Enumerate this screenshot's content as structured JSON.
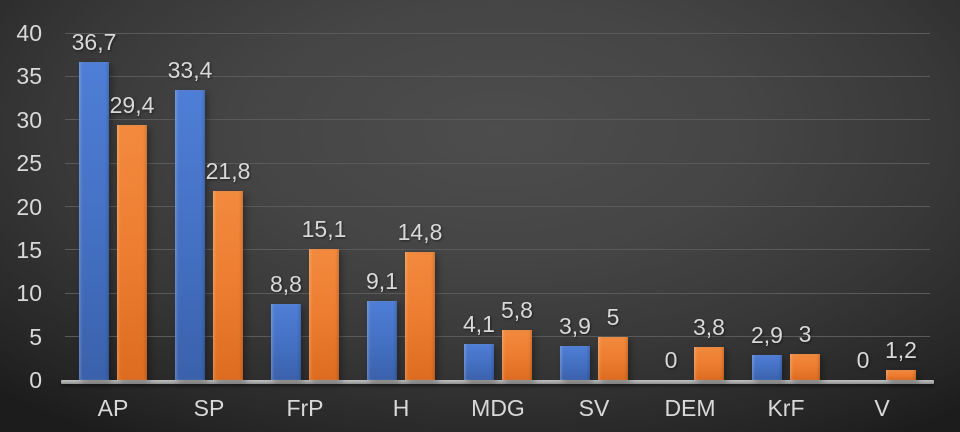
{
  "chart_data": {
    "type": "bar",
    "title": "",
    "xlabel": "",
    "ylabel": "",
    "categories": [
      "AP",
      "SP",
      "FrP",
      "H",
      "MDG",
      "SV",
      "DEM",
      "KrF",
      "V"
    ],
    "series": [
      {
        "name": "series-blue",
        "color": "#4472C4",
        "values": [
          36.7,
          33.4,
          8.8,
          9.1,
          4.1,
          3.9,
          0,
          2.9,
          0
        ],
        "labels": [
          "36,7",
          "33,4",
          "8,8",
          "9,1",
          "4,1",
          "3,9",
          "0",
          "2,9",
          "0"
        ]
      },
      {
        "name": "series-orange",
        "color": "#ED7D31",
        "values": [
          29.4,
          21.8,
          15.1,
          14.8,
          5.8,
          5,
          3.8,
          3,
          1.2
        ],
        "labels": [
          "29,4",
          "21,8",
          "15,1",
          "14,8",
          "5,8",
          "5",
          "3,8",
          "3",
          "1,2"
        ]
      }
    ],
    "ylim": [
      0,
      40
    ],
    "yticks": [
      0,
      5,
      10,
      15,
      20,
      25,
      30,
      35,
      40
    ],
    "ytick_labels": [
      "0",
      "5",
      "10",
      "15",
      "20",
      "25",
      "30",
      "35",
      "40"
    ],
    "grid": true,
    "legend": false,
    "decimal_separator": ",",
    "style": {
      "background_center": "#4b4b4b",
      "background_edge": "#1f1f1f",
      "text_color": "#d9d9d9",
      "gridline_color": "#5a5a5a",
      "axis_line_color": "#a8a8a8",
      "bar_blue": "#4472C4",
      "bar_orange": "#ED7D31"
    }
  }
}
